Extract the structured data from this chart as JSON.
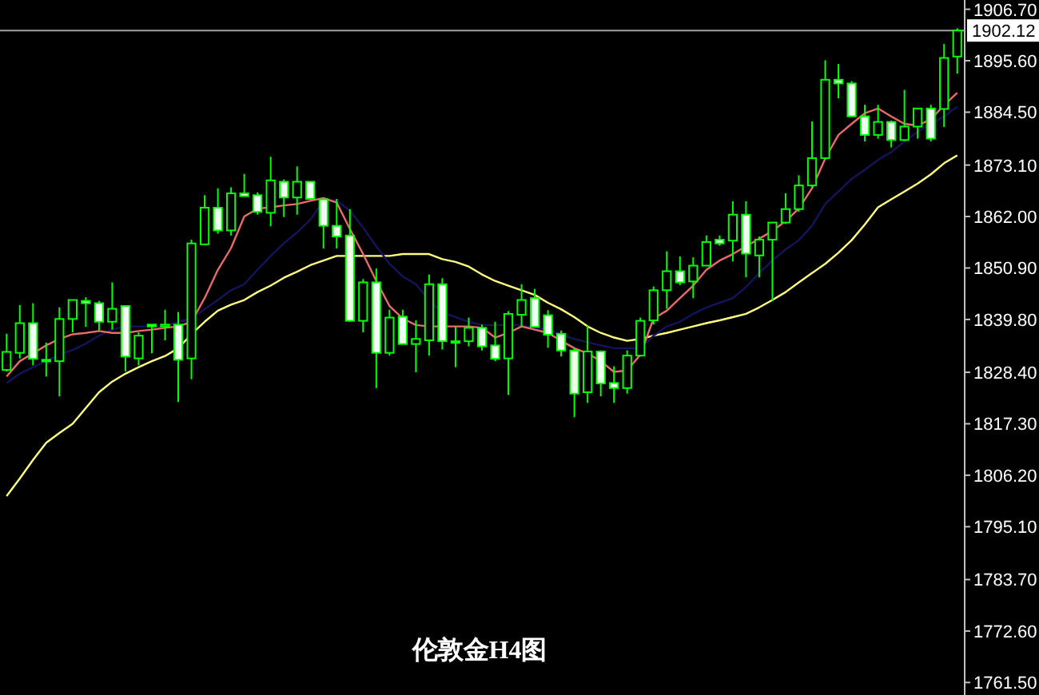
{
  "chart_data": {
    "type": "candlestick",
    "title": "伦敦金H4图",
    "color": "#00ff00",
    "grid": false,
    "tick_labels": "y",
    "categories": [
      null,
      null,
      null,
      null,
      null,
      null,
      null,
      null,
      null,
      null,
      null,
      null,
      null,
      null,
      null,
      null,
      null,
      null,
      null,
      null,
      null,
      null,
      null,
      null,
      null,
      null,
      null,
      null,
      null,
      null,
      null,
      null,
      null,
      null,
      null,
      null,
      null,
      null,
      null,
      null,
      null,
      null,
      null,
      null,
      null,
      null,
      null,
      null,
      null,
      null,
      null,
      null,
      null,
      null,
      null,
      null,
      null,
      null,
      null,
      null,
      null,
      null,
      null,
      null,
      null,
      null,
      null,
      null,
      null,
      null,
      null,
      null,
      null
    ],
    "ohlc": [
      [
        1828.9,
        1836.7,
        1828.6,
        1832.8
      ],
      [
        1832.6,
        1842.9,
        1831.4,
        1839.0
      ],
      [
        1839.0,
        1843.3,
        1829.9,
        1831.3
      ],
      [
        1831.1,
        1834.8,
        1827.5,
        1830.9
      ],
      [
        1830.8,
        1842.4,
        1823.2,
        1839.9
      ],
      [
        1839.9,
        1844.0,
        1837.0,
        1844.0
      ],
      [
        1843.8,
        1844.6,
        1838.2,
        1843.3
      ],
      [
        1843.3,
        1843.8,
        1837.4,
        1839.3
      ],
      [
        1839.3,
        1847.8,
        1837.6,
        1842.1
      ],
      [
        1842.7,
        1842.7,
        1828.6,
        1831.8
      ],
      [
        1831.4,
        1837.0,
        1829.9,
        1836.3
      ],
      [
        1838.7,
        1838.7,
        1832.5,
        1838.3
      ],
      [
        1838.3,
        1841.9,
        1835.3,
        1838.7
      ],
      [
        1838.7,
        1841.4,
        1822.0,
        1831.1
      ],
      [
        1831.4,
        1857.0,
        1826.9,
        1856.2
      ],
      [
        1856.0,
        1866.6,
        1856.0,
        1863.9
      ],
      [
        1863.9,
        1868.1,
        1858.3,
        1859.0
      ],
      [
        1859.0,
        1868.3,
        1857.9,
        1867.0
      ],
      [
        1867.0,
        1871.2,
        1866.4,
        1866.4
      ],
      [
        1866.6,
        1867.2,
        1862.4,
        1863.0
      ],
      [
        1862.8,
        1874.9,
        1859.9,
        1869.8
      ],
      [
        1869.5,
        1870.0,
        1861.9,
        1866.1
      ],
      [
        1866.1,
        1872.8,
        1862.4,
        1869.5
      ],
      [
        1869.5,
        1869.5,
        1865.6,
        1865.8
      ],
      [
        1865.7,
        1865.8,
        1855.1,
        1860.0
      ],
      [
        1860.0,
        1865.8,
        1855.1,
        1857.7
      ],
      [
        1857.9,
        1863.6,
        1839.3,
        1839.5
      ],
      [
        1839.5,
        1848.5,
        1837.0,
        1847.8
      ],
      [
        1847.8,
        1850.8,
        1825.0,
        1832.6
      ],
      [
        1832.6,
        1841.9,
        1832.0,
        1840.2
      ],
      [
        1840.4,
        1841.9,
        1834.5,
        1834.5
      ],
      [
        1834.5,
        1839.6,
        1828.4,
        1835.6
      ],
      [
        1835.3,
        1849.5,
        1832.0,
        1847.4
      ],
      [
        1847.4,
        1848.7,
        1833.3,
        1835.1
      ],
      [
        1835.1,
        1838.2,
        1829.5,
        1835.0
      ],
      [
        1835.1,
        1840.2,
        1834.0,
        1838.0
      ],
      [
        1838.0,
        1838.7,
        1833.1,
        1834.0
      ],
      [
        1834.2,
        1839.3,
        1830.8,
        1831.3
      ],
      [
        1831.4,
        1841.6,
        1823.5,
        1841.0
      ],
      [
        1840.8,
        1847.4,
        1838.2,
        1844.0
      ],
      [
        1844.4,
        1846.4,
        1838.1,
        1838.2
      ],
      [
        1840.7,
        1841.8,
        1833.7,
        1836.5
      ],
      [
        1836.7,
        1837.4,
        1831.8,
        1833.1
      ],
      [
        1833.1,
        1833.7,
        1818.7,
        1823.8
      ],
      [
        1824.1,
        1838.5,
        1821.8,
        1832.9
      ],
      [
        1832.9,
        1833.1,
        1823.2,
        1826.0
      ],
      [
        1826.1,
        1829.7,
        1821.8,
        1825.0
      ],
      [
        1825.0,
        1833.1,
        1823.8,
        1832.0
      ],
      [
        1832.0,
        1840.2,
        1831.8,
        1839.5
      ],
      [
        1839.6,
        1846.9,
        1838.7,
        1846.1
      ],
      [
        1846.1,
        1854.5,
        1842.1,
        1850.2
      ],
      [
        1850.2,
        1853.4,
        1847.2,
        1847.8
      ],
      [
        1848.0,
        1853.2,
        1844.4,
        1851.4
      ],
      [
        1851.4,
        1857.9,
        1851.4,
        1856.5
      ],
      [
        1857.0,
        1857.9,
        1855.7,
        1856.2
      ],
      [
        1856.8,
        1865.3,
        1852.3,
        1862.4
      ],
      [
        1862.4,
        1865.3,
        1848.9,
        1854.0
      ],
      [
        1853.6,
        1857.7,
        1848.9,
        1857.0
      ],
      [
        1857.0,
        1860.7,
        1843.8,
        1860.7
      ],
      [
        1860.7,
        1867.0,
        1860.4,
        1863.6
      ],
      [
        1863.6,
        1870.9,
        1863.0,
        1868.7
      ],
      [
        1868.7,
        1882.5,
        1868.3,
        1874.6
      ],
      [
        1874.6,
        1895.7,
        1874.3,
        1891.5
      ],
      [
        1891.5,
        1894.9,
        1887.5,
        1890.7
      ],
      [
        1890.7,
        1891.2,
        1883.5,
        1883.6
      ],
      [
        1883.6,
        1886.1,
        1878.2,
        1879.6
      ],
      [
        1879.6,
        1886.1,
        1878.8,
        1882.4
      ],
      [
        1882.4,
        1882.7,
        1876.9,
        1878.5
      ],
      [
        1878.5,
        1889.3,
        1878.3,
        1881.4
      ],
      [
        1881.4,
        1885.3,
        1878.8,
        1885.3
      ],
      [
        1885.3,
        1886.1,
        1878.2,
        1878.8
      ],
      [
        1885.2,
        1899.2,
        1881.3,
        1896.2
      ],
      [
        1896.5,
        1902.6,
        1892.8,
        1902.12
      ]
    ],
    "series": [
      {
        "type": "line",
        "color": "#ffff80",
        "values": [
          1801.7,
          1805.5,
          1809.5,
          1813.2,
          1815.3,
          1817.3,
          1820.7,
          1824.1,
          1826.4,
          1828.1,
          1829.5,
          1830.8,
          1831.9,
          1833.6,
          1836.6,
          1839.3,
          1841.7,
          1843.0,
          1844.0,
          1845.7,
          1847.1,
          1848.8,
          1850.1,
          1851.5,
          1852.5,
          1853.5,
          1853.5,
          1853.5,
          1853.5,
          1853.5,
          1853.9,
          1853.9,
          1853.9,
          1852.8,
          1852.2,
          1851.2,
          1849.5,
          1848.1,
          1847.1,
          1846.1,
          1845.1,
          1843.4,
          1842.0,
          1840.3,
          1838.3,
          1836.9,
          1835.9,
          1835.2,
          1835.6,
          1836.3,
          1836.9,
          1837.6,
          1838.3,
          1839.0,
          1839.6,
          1840.3,
          1841.0,
          1842.4,
          1844.0,
          1845.7,
          1847.8,
          1849.8,
          1851.8,
          1854.2,
          1856.9,
          1860.3,
          1864.0,
          1865.7,
          1867.4,
          1869.1,
          1871.1,
          1873.5,
          1875.2
        ]
      },
      {
        "type": "line",
        "color": "#14145a",
        "values": [
          1826.1,
          1828.1,
          1829.5,
          1830.8,
          1832.2,
          1833.2,
          1834.6,
          1836.3,
          1837.6,
          1838.3,
          1838.3,
          1838.3,
          1838.3,
          1839.3,
          1840.0,
          1842.0,
          1844.0,
          1846.1,
          1847.4,
          1850.5,
          1853.5,
          1856.2,
          1858.6,
          1861.3,
          1865.4,
          1865.4,
          1863.3,
          1859.6,
          1855.6,
          1851.8,
          1849.1,
          1847.4,
          1844.0,
          1841.3,
          1840.3,
          1839.3,
          1838.6,
          1838.6,
          1838.6,
          1838.6,
          1838.0,
          1837.6,
          1836.6,
          1835.6,
          1834.9,
          1834.2,
          1833.6,
          1833.6,
          1833.6,
          1836.3,
          1838.3,
          1839.3,
          1841.0,
          1842.4,
          1843.4,
          1844.4,
          1846.8,
          1849.8,
          1852.5,
          1854.9,
          1856.9,
          1860.0,
          1864.7,
          1867.4,
          1870.1,
          1872.1,
          1874.2,
          1875.9,
          1878.2,
          1880.3,
          1882.0,
          1883.6,
          1885.7
        ]
      },
      {
        "type": "line",
        "color": "#e86a6a",
        "values": [
          1827.5,
          1830.8,
          1832.5,
          1834.2,
          1835.6,
          1836.6,
          1836.9,
          1837.3,
          1836.9,
          1836.9,
          1837.3,
          1837.6,
          1838.0,
          1838.3,
          1839.3,
          1844.4,
          1850.5,
          1855.2,
          1862.0,
          1863.7,
          1864.0,
          1864.4,
          1864.7,
          1865.4,
          1866.0,
          1865.0,
          1859.3,
          1853.9,
          1848.1,
          1842.7,
          1840.0,
          1838.6,
          1838.3,
          1838.3,
          1838.3,
          1838.3,
          1838.0,
          1835.9,
          1836.9,
          1838.3,
          1837.6,
          1836.9,
          1835.2,
          1833.6,
          1832.5,
          1830.8,
          1828.5,
          1828.8,
          1832.2,
          1840.0,
          1841.7,
          1844.4,
          1847.1,
          1850.5,
          1852.5,
          1853.9,
          1855.6,
          1857.2,
          1858.9,
          1861.0,
          1863.7,
          1868.1,
          1874.5,
          1879.6,
          1882.0,
          1884.3,
          1885.3,
          1883.6,
          1882.0,
          1881.6,
          1883.0,
          1886.0,
          1888.7
        ]
      }
    ],
    "ylim": [
      1758.8,
      1908.7
    ],
    "yticks": [
      {
        "value": 1906.7,
        "label": "1906.70"
      },
      {
        "value": 1895.6,
        "label": "1895.60"
      },
      {
        "value": 1884.5,
        "label": "1884.50"
      },
      {
        "value": 1873.1,
        "label": "1873.10"
      },
      {
        "value": 1862.0,
        "label": "1862.00"
      },
      {
        "value": 1850.9,
        "label": "1850.90"
      },
      {
        "value": 1839.8,
        "label": "1839.80"
      },
      {
        "value": 1828.4,
        "label": "1828.40"
      },
      {
        "value": 1817.3,
        "label": "1817.30"
      },
      {
        "value": 1806.2,
        "label": "1806.20"
      },
      {
        "value": 1795.1,
        "label": "1795.10"
      },
      {
        "value": 1783.7,
        "label": "1783.70"
      },
      {
        "value": 1772.6,
        "label": "1772.60"
      },
      {
        "value": 1761.5,
        "label": "1761.50"
      }
    ],
    "ref_lines": [
      {
        "axis": "y",
        "value": 1902.12,
        "label": "1902.12",
        "color": "#a0a0a0"
      }
    ]
  }
}
